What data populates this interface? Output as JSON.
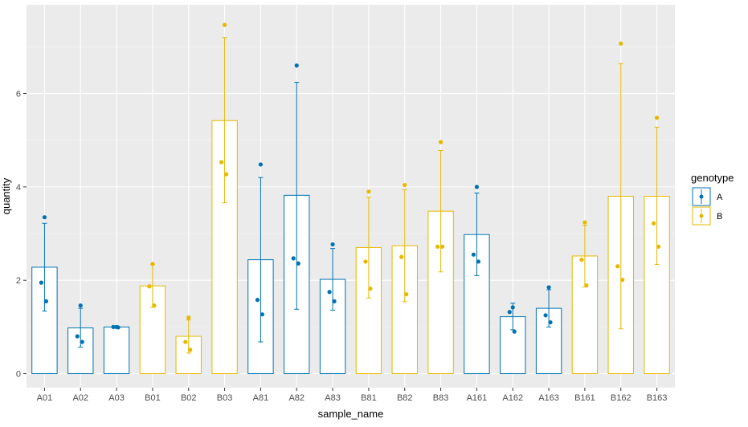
{
  "chart_data": {
    "type": "bar",
    "xlabel": "sample_name",
    "ylabel": "quantity",
    "ylim": [
      -0.3,
      7.9
    ],
    "yticks": [
      0,
      2,
      4,
      6
    ],
    "grid": true,
    "legend": {
      "title": "genotype",
      "position": "right",
      "entries": [
        {
          "label": "A",
          "color": "#0072B2"
        },
        {
          "label": "B",
          "color": "#E6B800"
        }
      ]
    },
    "categories": [
      "A01",
      "A02",
      "A03",
      "B01",
      "B02",
      "B03",
      "A81",
      "A82",
      "A83",
      "B81",
      "B82",
      "B83",
      "A161",
      "A162",
      "A163",
      "B161",
      "B162",
      "B163"
    ],
    "genotype": [
      "A",
      "A",
      "A",
      "B",
      "B",
      "B",
      "A",
      "A",
      "A",
      "B",
      "B",
      "B",
      "A",
      "A",
      "A",
      "B",
      "B",
      "B"
    ],
    "values": [
      2.28,
      0.98,
      1.0,
      1.88,
      0.8,
      5.42,
      2.44,
      3.82,
      2.02,
      2.7,
      2.74,
      3.48,
      2.98,
      1.22,
      1.4,
      2.52,
      3.8,
      3.8
    ],
    "error_low": [
      1.34,
      0.57,
      0.98,
      1.42,
      0.44,
      3.66,
      0.68,
      1.38,
      1.36,
      1.62,
      1.54,
      2.18,
      2.1,
      0.94,
      1.0,
      1.86,
      0.96,
      2.34
    ],
    "error_high": [
      3.22,
      1.4,
      1.02,
      2.34,
      1.15,
      7.2,
      4.2,
      6.24,
      2.68,
      3.78,
      3.94,
      4.78,
      3.87,
      1.51,
      1.8,
      3.18,
      6.64,
      5.28
    ],
    "points": [
      [
        3.35,
        1.95,
        1.55
      ],
      [
        1.46,
        0.8,
        0.68
      ],
      [
        1.0,
        1.0,
        0.99
      ],
      [
        2.35,
        1.87,
        1.46
      ],
      [
        1.2,
        0.68,
        0.51
      ],
      [
        7.47,
        4.53,
        4.27
      ],
      [
        4.48,
        1.58,
        1.27
      ],
      [
        6.6,
        2.47,
        2.36
      ],
      [
        2.77,
        1.75,
        1.55
      ],
      [
        3.9,
        2.4,
        1.82
      ],
      [
        4.04,
        2.5,
        1.7
      ],
      [
        4.96,
        2.72,
        2.72
      ],
      [
        4.0,
        2.55,
        2.4
      ],
      [
        1.42,
        1.32,
        0.9
      ],
      [
        1.85,
        1.25,
        1.1
      ],
      [
        3.24,
        2.44,
        1.89
      ],
      [
        7.07,
        2.3,
        2.01
      ],
      [
        5.48,
        3.22,
        2.72
      ]
    ]
  }
}
